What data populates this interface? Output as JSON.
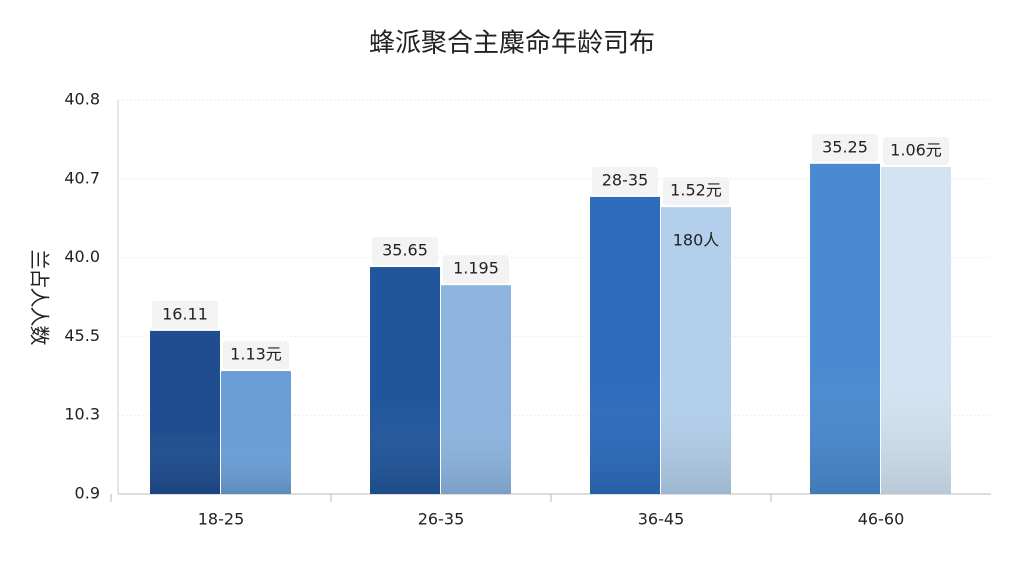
{
  "chart_data": {
    "type": "bar",
    "title": "蜂派聚合主麋命年龄司布",
    "y_label": "兰占人人数",
    "categories": [
      "18-25",
      "26-35",
      "36-45",
      "46-60"
    ],
    "ylim": [
      0,
      5
    ],
    "yticks": [
      {
        "value": 0,
        "label": "0.9"
      },
      {
        "value": 1,
        "label": "10.3"
      },
      {
        "value": 2,
        "label": "45.5"
      },
      {
        "value": 3,
        "label": "40.0"
      },
      {
        "value": 4,
        "label": "40.7"
      },
      {
        "value": 5,
        "label": "40.8"
      }
    ],
    "grid": true,
    "series": [
      {
        "colors": [
          "#1f4d8f",
          "#22569c",
          "#2d6bbd",
          "#4a8ad0"
        ],
        "values": [
          2.07,
          2.88,
          3.77,
          4.19
        ],
        "labels": [
          "16.11",
          "35.65",
          "28-35",
          "35.25"
        ]
      },
      {
        "colors": [
          "#6a9ed4",
          "#8cb4df",
          "#b3cfeb",
          "#d2e3f3"
        ],
        "values": [
          1.56,
          2.65,
          3.64,
          4.15
        ],
        "labels": [
          "1.13元",
          "1.195",
          "1.52元",
          "1.06元"
        ]
      }
    ],
    "annotations": [
      {
        "text": "180人",
        "series": 1,
        "category": 2
      }
    ]
  }
}
